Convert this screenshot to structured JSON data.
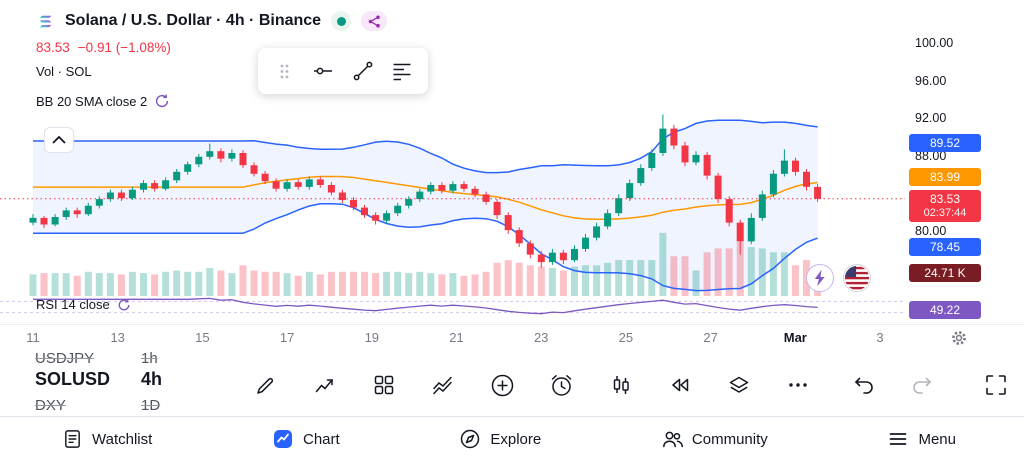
{
  "header": {
    "symbol_title": "Solana / U.S. Dollar · 4h · Binance",
    "currency": "USD",
    "price": "83.53",
    "change": "−0.91 (−1.08%)",
    "vol_label": "Vol · SOL",
    "indicator_label": "BB 20 SMA close 2",
    "rsi_label": "RSI 14 close"
  },
  "colors": {
    "up": "#089981",
    "down": "#F23645",
    "vol_up": "rgba(8,153,129,0.3)",
    "vol_down": "rgba(242,54,69,0.3)",
    "band": "#2962FF",
    "basis": "#FF9800",
    "band_fill": "rgba(41,98,255,0.07)",
    "rsi": "#7E57C2",
    "accent": "#2962FF"
  },
  "price_scale": {
    "badges": [
      {
        "name": "bb-upper",
        "text": "89.52",
        "bg": "#2962FF"
      },
      {
        "name": "bb-basis",
        "text": "83.99",
        "bg": "#FF9800"
      },
      {
        "name": "last-price",
        "text": "83.53",
        "sub": "02:37:44",
        "bg": "#F23645"
      },
      {
        "name": "bb-lower",
        "text": "78.45",
        "bg": "#2962FF"
      },
      {
        "name": "volume",
        "text": "24.71 K",
        "bg": "#7A1C24"
      },
      {
        "name": "rsi",
        "text": "49.22",
        "bg": "#7E57C2"
      }
    ]
  },
  "watchlist": [
    {
      "symbol": "USDJPY",
      "tf": "1h"
    },
    {
      "symbol": "SOLUSD",
      "tf": "4h"
    },
    {
      "symbol": "DXY",
      "tf": "1D"
    }
  ],
  "bottom_nav": [
    {
      "label": "Watchlist"
    },
    {
      "label": "Chart",
      "active": true
    },
    {
      "label": "Explore"
    },
    {
      "label": "Community"
    },
    {
      "label": "Menu"
    }
  ],
  "icons": [
    "solana-logo",
    "market-status-dot",
    "share",
    "currency-chevron",
    "drag-handle",
    "horizontal-line-tool",
    "trend-line-tool",
    "horizontal-lines-tool",
    "collapse-chevron-up",
    "lightning-bolt",
    "us-flag",
    "gear",
    "draw-pencil",
    "indicators",
    "layout-grid",
    "patterns",
    "plus-circle",
    "alert-clock",
    "candles",
    "replay-rewind",
    "object-tree-layers",
    "more-ellipsis",
    "undo",
    "redo",
    "fullscreen",
    "watchlist-list",
    "chart-active",
    "explore-compass",
    "community-people",
    "menu-hamburger"
  ],
  "chart_data": {
    "type": "candlestick",
    "title": "Solana / U.S. Dollar · 4h · Binance",
    "symbol": "SOLUSD",
    "exchange": "Binance",
    "interval": "4h",
    "last_price": 83.53,
    "change": -0.91,
    "change_pct": -1.08,
    "countdown": "02:37:44",
    "y_axis_ticks": [
      100,
      96,
      92,
      88,
      80
    ],
    "x_axis_labels": [
      "11",
      "13",
      "15",
      "17",
      "19",
      "21",
      "23",
      "25",
      "27",
      "Mar",
      "3"
    ],
    "x_axis_highlight": "Mar",
    "indicators": {
      "bollinger": {
        "label": "BB 20 SMA close 2",
        "upper": 89.52,
        "basis": 83.99,
        "lower": 78.45
      },
      "rsi": {
        "label": "RSI 14 close",
        "value": 49.22
      },
      "volume": {
        "label": "Vol · SOL",
        "value": "24.71 K"
      }
    },
    "candles": [
      [
        81.0,
        81.9,
        80.7,
        81.5
      ],
      [
        81.5,
        81.7,
        80.4,
        80.8
      ],
      [
        80.8,
        81.9,
        80.6,
        81.6
      ],
      [
        81.6,
        82.6,
        81.3,
        82.3
      ],
      [
        82.3,
        82.6,
        81.5,
        81.9
      ],
      [
        81.9,
        83.1,
        81.7,
        82.8
      ],
      [
        82.8,
        83.8,
        82.5,
        83.5
      ],
      [
        83.5,
        84.5,
        83.2,
        84.2
      ],
      [
        84.2,
        84.5,
        83.3,
        83.6
      ],
      [
        83.6,
        84.8,
        83.4,
        84.5
      ],
      [
        84.5,
        85.5,
        84.2,
        85.2
      ],
      [
        85.2,
        85.5,
        84.3,
        84.6
      ],
      [
        84.6,
        85.8,
        84.4,
        85.5
      ],
      [
        85.5,
        86.7,
        85.2,
        86.4
      ],
      [
        86.4,
        87.5,
        86.1,
        87.2
      ],
      [
        87.2,
        88.3,
        86.9,
        88.0
      ],
      [
        88.0,
        89.4,
        87.7,
        88.6
      ],
      [
        88.6,
        88.9,
        87.4,
        87.8
      ],
      [
        87.8,
        88.8,
        87.5,
        88.4
      ],
      [
        88.4,
        88.7,
        86.8,
        87.1
      ],
      [
        87.1,
        87.4,
        85.9,
        86.2
      ],
      [
        86.2,
        86.5,
        85.1,
        85.4
      ],
      [
        85.4,
        85.7,
        84.3,
        84.6
      ],
      [
        84.6,
        85.6,
        84.3,
        85.3
      ],
      [
        85.3,
        85.6,
        84.5,
        84.8
      ],
      [
        84.8,
        85.9,
        84.5,
        85.6
      ],
      [
        85.6,
        85.9,
        84.7,
        85.0
      ],
      [
        85.0,
        85.3,
        83.9,
        84.2
      ],
      [
        84.2,
        84.5,
        83.1,
        83.4
      ],
      [
        83.4,
        83.7,
        82.3,
        82.6
      ],
      [
        82.6,
        82.9,
        81.5,
        81.8
      ],
      [
        81.8,
        82.1,
        80.8,
        81.2
      ],
      [
        81.2,
        82.3,
        80.9,
        82.0
      ],
      [
        82.0,
        83.1,
        81.7,
        82.8
      ],
      [
        82.8,
        83.8,
        82.5,
        83.5
      ],
      [
        83.5,
        84.6,
        83.2,
        84.3
      ],
      [
        84.3,
        85.3,
        84.0,
        85.0
      ],
      [
        85.0,
        85.3,
        84.1,
        84.4
      ],
      [
        84.4,
        85.4,
        84.1,
        85.1
      ],
      [
        85.1,
        85.4,
        84.3,
        84.6
      ],
      [
        84.6,
        84.9,
        83.7,
        84.0
      ],
      [
        84.0,
        84.3,
        82.9,
        83.2
      ],
      [
        83.2,
        83.5,
        81.4,
        81.8
      ],
      [
        81.8,
        82.1,
        79.8,
        80.2
      ],
      [
        80.2,
        80.5,
        78.4,
        78.8
      ],
      [
        78.8,
        79.1,
        77.2,
        77.6
      ],
      [
        77.6,
        78.0,
        76.2,
        76.8
      ],
      [
        76.8,
        78.2,
        76.5,
        77.8
      ],
      [
        77.8,
        78.1,
        76.6,
        77.0
      ],
      [
        77.0,
        78.6,
        76.8,
        78.2
      ],
      [
        78.2,
        79.8,
        77.9,
        79.4
      ],
      [
        79.4,
        81.0,
        79.1,
        80.6
      ],
      [
        80.6,
        82.4,
        80.3,
        82.0
      ],
      [
        82.0,
        84.0,
        81.7,
        83.6
      ],
      [
        83.6,
        85.6,
        83.3,
        85.2
      ],
      [
        85.2,
        87.2,
        84.9,
        86.8
      ],
      [
        86.8,
        88.8,
        86.5,
        88.4
      ],
      [
        88.4,
        92.5,
        88.1,
        91.0
      ],
      [
        91.0,
        91.4,
        88.8,
        89.2
      ],
      [
        89.2,
        89.6,
        87.0,
        87.4
      ],
      [
        87.4,
        88.6,
        87.1,
        88.2
      ],
      [
        88.2,
        88.5,
        85.6,
        86.0
      ],
      [
        86.0,
        86.3,
        83.1,
        83.5
      ],
      [
        83.5,
        83.8,
        80.6,
        81.0
      ],
      [
        81.0,
        81.3,
        77.6,
        79.0
      ],
      [
        79.0,
        82.0,
        78.7,
        81.5
      ],
      [
        81.5,
        84.4,
        81.2,
        84.0
      ],
      [
        84.0,
        86.6,
        83.7,
        86.2
      ],
      [
        86.2,
        88.8,
        85.9,
        87.6
      ],
      [
        87.6,
        87.9,
        86.0,
        86.4
      ],
      [
        86.4,
        86.7,
        84.4,
        84.8
      ],
      [
        84.8,
        85.1,
        83.2,
        83.53
      ]
    ]
  }
}
